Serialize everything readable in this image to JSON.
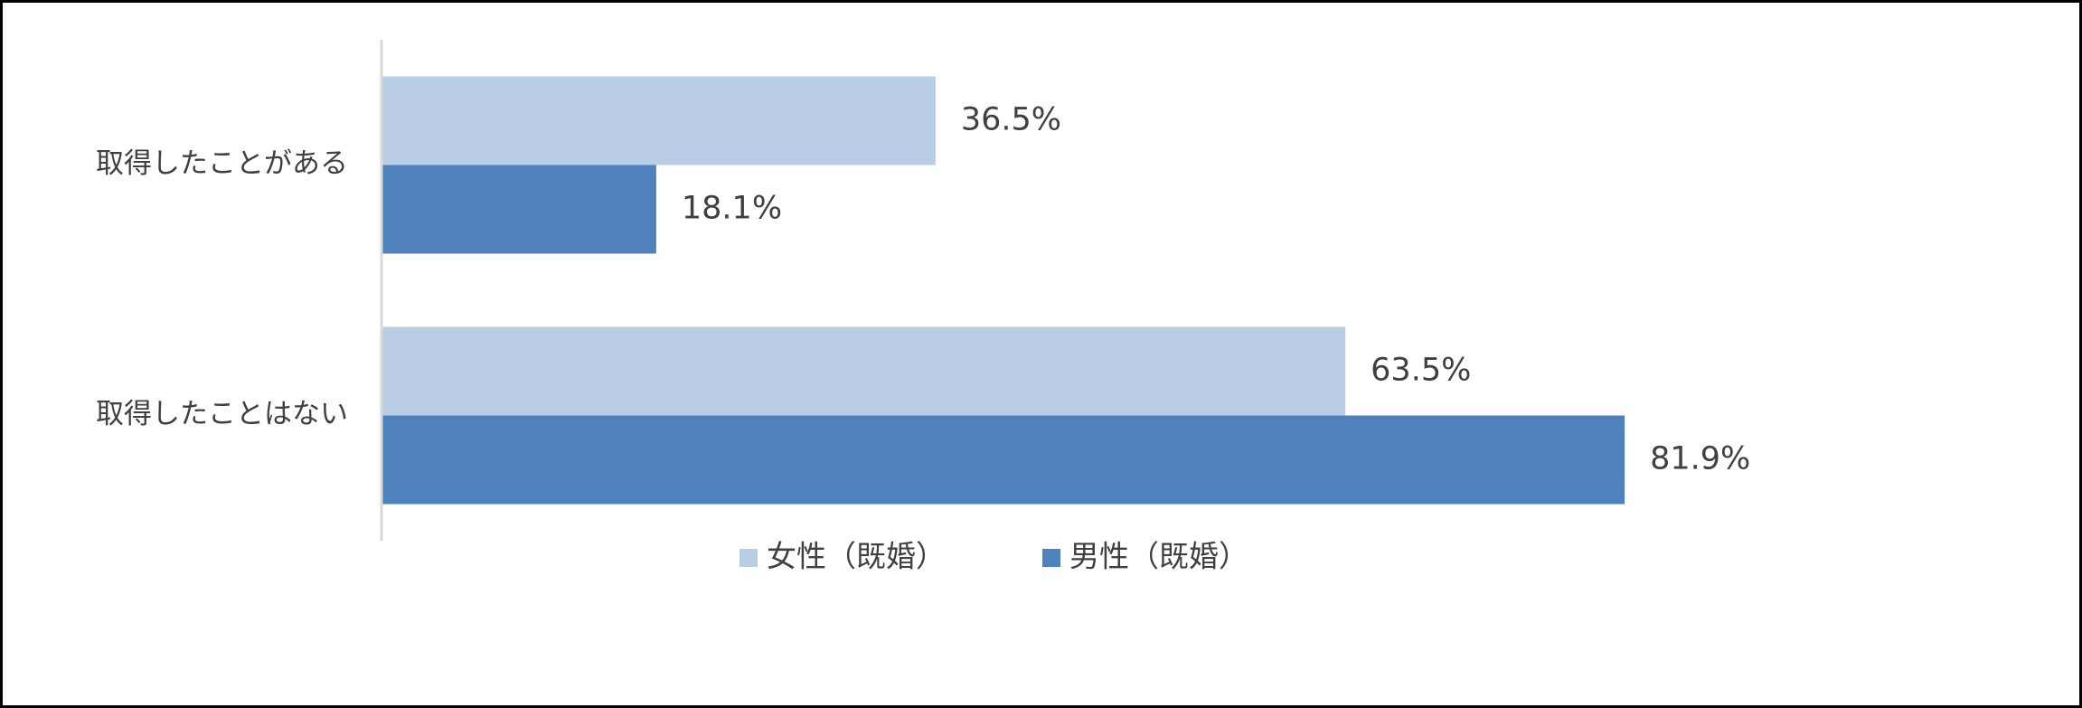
{
  "chart_data": {
    "type": "bar",
    "orientation": "horizontal",
    "categories": [
      "取得したことがある",
      "取得したことはない"
    ],
    "series": [
      {
        "name": "女性（既婚）",
        "color": "#b9cde5",
        "values": [
          36.5,
          63.5
        ],
        "value_labels": [
          "36.5%",
          "63.5%"
        ]
      },
      {
        "name": "男性（既婚）",
        "color": "#4f81bd",
        "values": [
          18.1,
          81.9
        ],
        "value_labels": [
          "18.1%",
          "81.9%"
        ]
      }
    ],
    "xlim": [
      0,
      100
    ],
    "legend": "bottom"
  }
}
